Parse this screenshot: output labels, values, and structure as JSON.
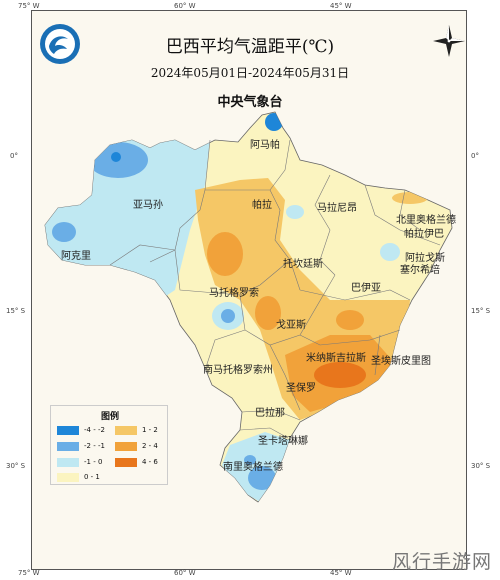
{
  "title": "巴西平均气温距平(℃)",
  "period": "2024年05月01日-2024年05月31日",
  "agency": "中央气象台",
  "coords": {
    "top": [
      "75° W",
      "60° W",
      "45° W"
    ],
    "bottom": [
      "75° W",
      "60° W",
      "45° W"
    ],
    "left": [
      "0°",
      "15° S",
      "30° S"
    ],
    "right": [
      "0°",
      "15° S",
      "30° S"
    ]
  },
  "regions": [
    {
      "id": "amapa",
      "label": "阿马帕"
    },
    {
      "id": "amazonas",
      "label": "亚马孙"
    },
    {
      "id": "para",
      "label": "帕拉"
    },
    {
      "id": "maranhao",
      "label": "马拉尼昂"
    },
    {
      "id": "rgn",
      "label": "北里奥格兰德"
    },
    {
      "id": "paraiba",
      "label": "帕拉伊巴"
    },
    {
      "id": "acre",
      "label": "阿克里"
    },
    {
      "id": "alagoas",
      "label": "阿拉戈斯"
    },
    {
      "id": "sergipe",
      "label": "塞尔希培"
    },
    {
      "id": "tocantins",
      "label": "托坎廷斯"
    },
    {
      "id": "bahia",
      "label": "巴伊亚"
    },
    {
      "id": "mt",
      "label": "马托格罗索"
    },
    {
      "id": "goias",
      "label": "戈亚斯"
    },
    {
      "id": "mg",
      "label": "米纳斯吉拉斯"
    },
    {
      "id": "es",
      "label": "圣埃斯皮里图"
    },
    {
      "id": "ms",
      "label": "南马托格罗索州"
    },
    {
      "id": "sp",
      "label": "圣保罗"
    },
    {
      "id": "pr",
      "label": "巴拉那"
    },
    {
      "id": "sc",
      "label": "圣卡塔琳娜"
    },
    {
      "id": "rs",
      "label": "南里奥格兰德"
    }
  ],
  "legend": {
    "title": "图例",
    "items": [
      {
        "label": "-4 - -2",
        "color": "#1e86d8"
      },
      {
        "label": "-2 - -1",
        "color": "#6aaee6"
      },
      {
        "label": "-1 - 0",
        "color": "#bfe8f2"
      },
      {
        "label": "0 - 1",
        "color": "#fbf4c0"
      },
      {
        "label": "1 - 2",
        "color": "#f5c766"
      },
      {
        "label": "2 - 4",
        "color": "#f1a23a"
      },
      {
        "label": "4 - 6",
        "color": "#e8761c"
      }
    ]
  },
  "watermark": "风行手游网"
}
